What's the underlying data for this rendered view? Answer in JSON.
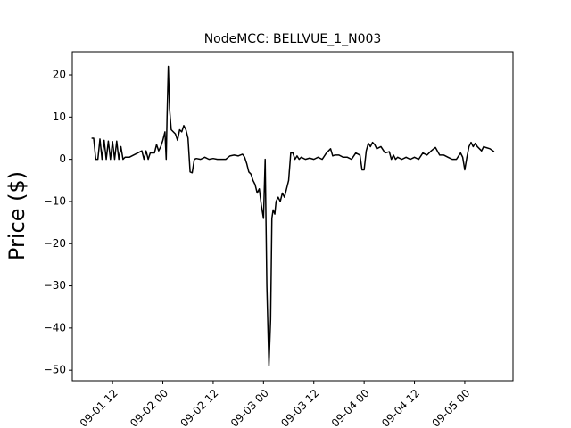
{
  "chart_data": {
    "type": "line",
    "title": "NodeMCC: BELLVUE_1_N003",
    "y_label": "Price ($)",
    "x": [
      7,
      7.5,
      8,
      8.5,
      9,
      9.5,
      10,
      10.5,
      11,
      11.5,
      12,
      12.5,
      13,
      13.5,
      14,
      14.5,
      15,
      16,
      17,
      18,
      19,
      19.5,
      20,
      20.5,
      21,
      22,
      22.5,
      23,
      23.5,
      24,
      24.5,
      24.8,
      25,
      25.3,
      25.6,
      26,
      26.5,
      27,
      27.5,
      28,
      28.5,
      29,
      29.5,
      30,
      30.5,
      31,
      31.5,
      32,
      33,
      34,
      35,
      36,
      37,
      38,
      39,
      40,
      41,
      42,
      43,
      43.5,
      44,
      44.5,
      45,
      45.5,
      46,
      46.5,
      47,
      47.5,
      48,
      48.4,
      48.8,
      49.3,
      49.7,
      50,
      50.3,
      50.7,
      51,
      51.5,
      52,
      52.5,
      53,
      53.5,
      54,
      54.5,
      55,
      55.5,
      56,
      56.5,
      57,
      58,
      59,
      60,
      61,
      62,
      63,
      64,
      64.5,
      65,
      66,
      67,
      68,
      69,
      70,
      71,
      71.5,
      72,
      72.5,
      73,
      73.5,
      74,
      74.5,
      75,
      76,
      77,
      78,
      78.5,
      79,
      79.5,
      80,
      81,
      82,
      83,
      84,
      85,
      86,
      87,
      88,
      89,
      90,
      91,
      92,
      93,
      94,
      95,
      95.5,
      96,
      96.5,
      97,
      97.5,
      98,
      98.5,
      99,
      99.5,
      100,
      100.5,
      101,
      102,
      103
    ],
    "series": [
      {
        "color": "#000000",
        "values": [
          5,
          5,
          0,
          0,
          4.8,
          0,
          4.5,
          0,
          4.3,
          0,
          4.2,
          0,
          4.3,
          0,
          3,
          0,
          0.5,
          0.5,
          1,
          1.5,
          2,
          0,
          2,
          0,
          1.5,
          1.5,
          3.5,
          2,
          3,
          4.5,
          6.5,
          0,
          10,
          22,
          12,
          7,
          6.5,
          6,
          4.5,
          7,
          6.5,
          8,
          7,
          5,
          -3,
          -3.2,
          0,
          0.2,
          0,
          0.5,
          0,
          0.2,
          0,
          0,
          0,
          0.8,
          1,
          0.8,
          1.2,
          0.5,
          -1,
          -3,
          -3.5,
          -5,
          -6,
          -8,
          -7,
          -11,
          -14,
          0,
          -30,
          -49,
          -38,
          -14,
          -12,
          -13,
          -10,
          -9,
          -10,
          -8,
          -9,
          -7,
          -5,
          1.5,
          1.5,
          0,
          0.8,
          0,
          0.5,
          0,
          0.3,
          0,
          0.5,
          0,
          1.5,
          2.5,
          0.8,
          1,
          1,
          0.5,
          0.5,
          0,
          1.5,
          1,
          -2.5,
          -2.5,
          2,
          3.8,
          3,
          4,
          3.5,
          2.5,
          3,
          1.5,
          1.8,
          0,
          1,
          0,
          0.5,
          0,
          0.5,
          0,
          0.5,
          0,
          1.5,
          1,
          2,
          2.8,
          1,
          1,
          0.5,
          0,
          0,
          1.5,
          0.5,
          -2.5,
          0.5,
          3,
          4,
          3,
          3.8,
          3,
          2.5,
          2,
          3,
          2.8,
          2.5,
          1.8
        ]
      }
    ],
    "xlim": [
      2.4,
      107.5
    ],
    "xticks": [
      {
        "value": 12,
        "label": "09-01 12"
      },
      {
        "value": 24,
        "label": "09-02 00"
      },
      {
        "value": 36,
        "label": "09-02 12"
      },
      {
        "value": 48,
        "label": "09-03 00"
      },
      {
        "value": 60,
        "label": "09-03 12"
      },
      {
        "value": 72,
        "label": "09-04 00"
      },
      {
        "value": 84,
        "label": "09-04 12"
      },
      {
        "value": 96,
        "label": "09-05 00"
      }
    ],
    "ylim": [
      -52.5,
      25.5
    ],
    "yticks": [
      {
        "value": -50,
        "label": "−50"
      },
      {
        "value": -40,
        "label": "−40"
      },
      {
        "value": -30,
        "label": "−30"
      },
      {
        "value": -20,
        "label": "−20"
      },
      {
        "value": -10,
        "label": "−10"
      },
      0,
      10,
      20
    ],
    "grid": false
  }
}
